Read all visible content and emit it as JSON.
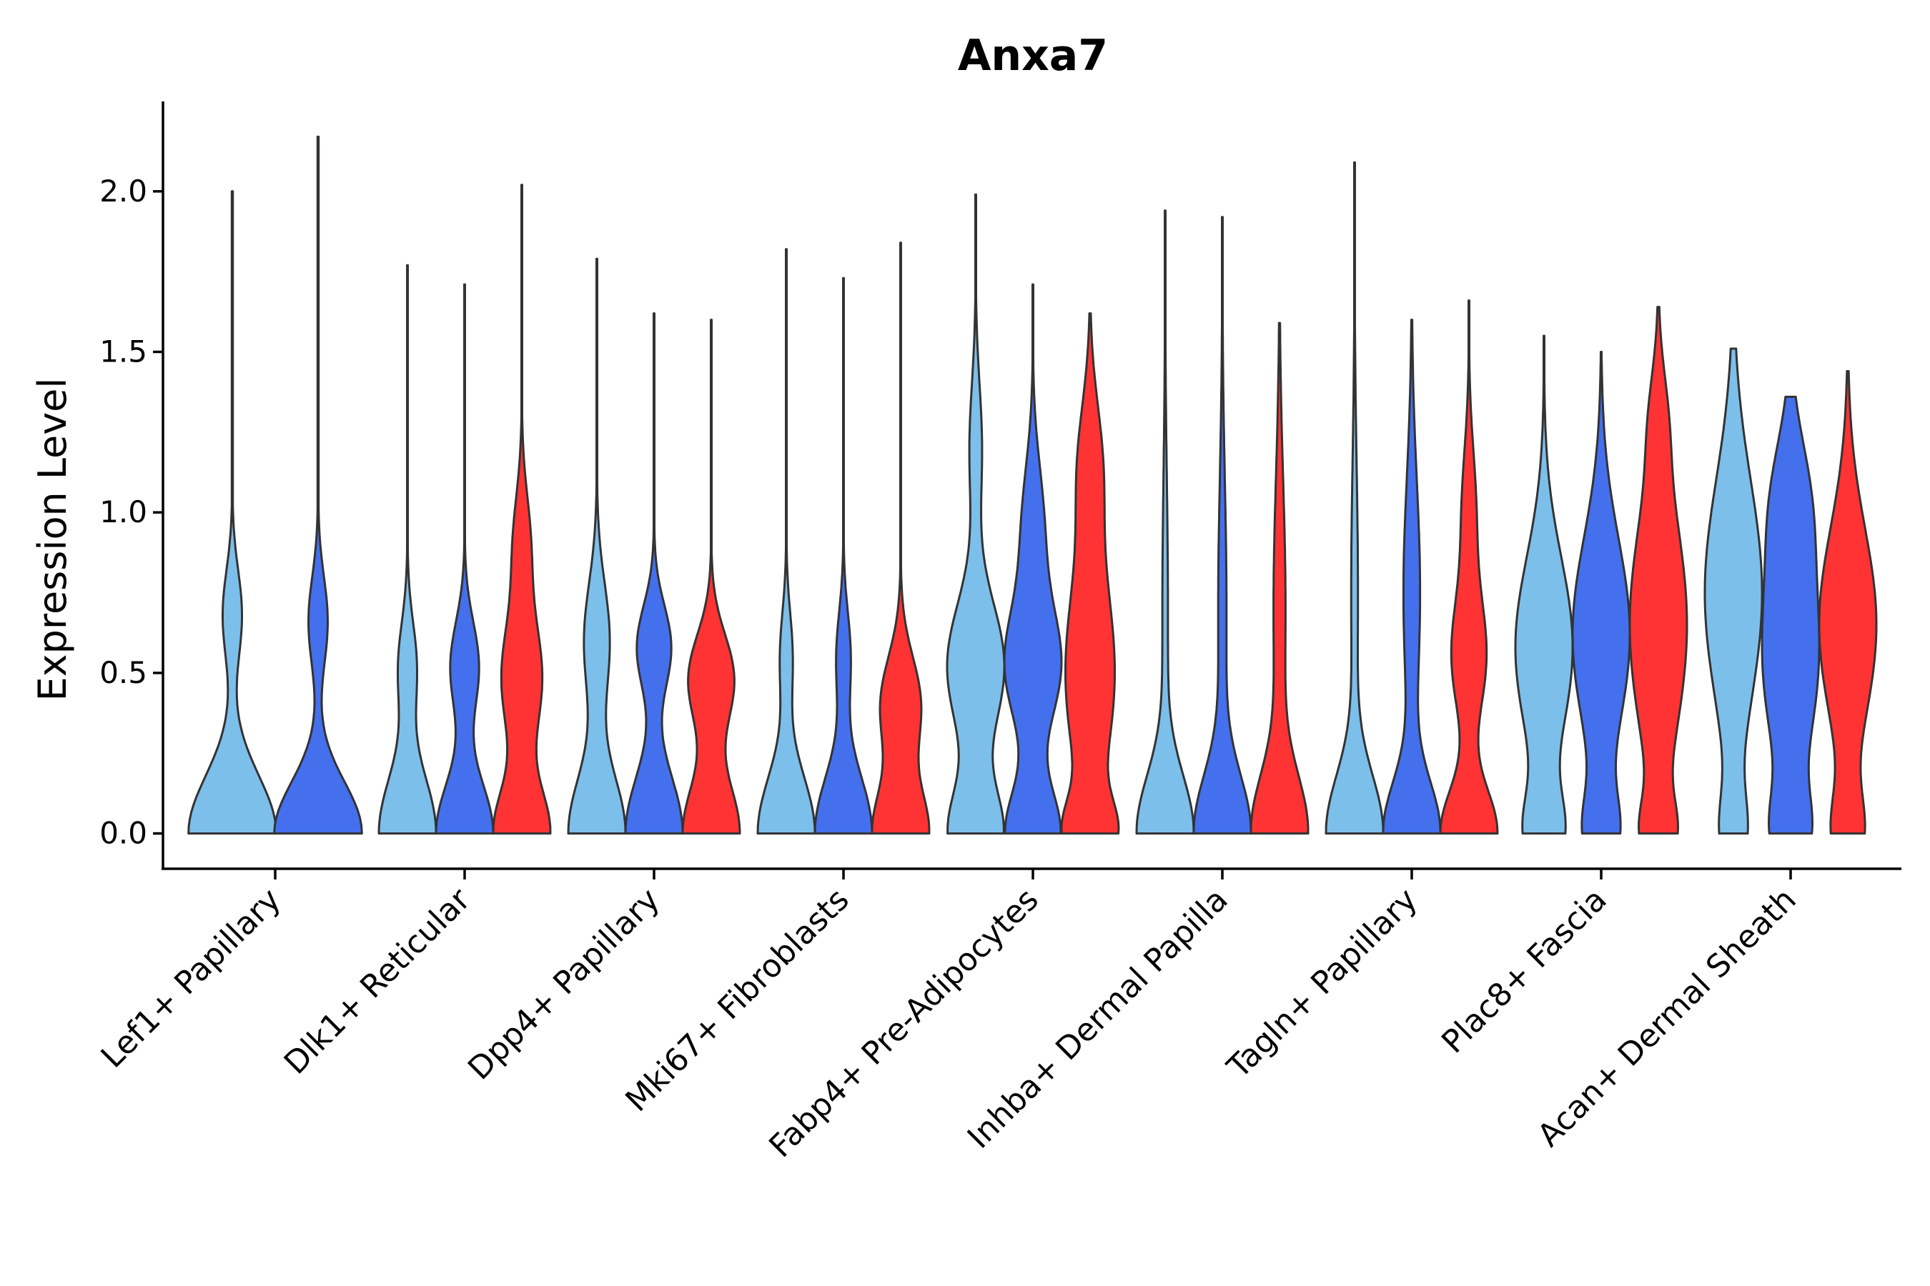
{
  "chart_data": {
    "type": "violin",
    "title": "Anxa7",
    "xlabel": "",
    "ylabel": "Expression Level",
    "ylim": [
      -0.11,
      2.28
    ],
    "yticks": [
      0.0,
      0.5,
      1.0,
      1.5,
      2.0
    ],
    "ytick_labels": [
      "0.0",
      "0.5",
      "1.0",
      "1.5",
      "2.0"
    ],
    "group_colors": [
      "#7DBFEB",
      "#4470EE",
      "#FF3333"
    ],
    "categories": [
      {
        "label": "Lef1+ Papillary",
        "violins": [
          {
            "group": 0,
            "max": 2.0,
            "width": 0.92,
            "modes": [
              [
                0.0,
                1.0,
                0.18
              ],
              [
                0.68,
                0.22,
                0.14
              ]
            ]
          },
          {
            "group": 1,
            "max": 2.17,
            "width": 0.92,
            "modes": [
              [
                0.0,
                1.0,
                0.16
              ],
              [
                0.66,
                0.22,
                0.14
              ]
            ]
          }
        ]
      },
      {
        "label": "Dlk1+ Reticular",
        "violins": [
          {
            "group": 0,
            "max": 1.77,
            "width": 0.6,
            "modes": [
              [
                0.0,
                1.0,
                0.18
              ],
              [
                0.52,
                0.32,
                0.14
              ]
            ]
          },
          {
            "group": 1,
            "max": 1.71,
            "width": 0.6,
            "modes": [
              [
                0.0,
                1.0,
                0.16
              ],
              [
                0.52,
                0.5,
                0.14
              ]
            ]
          },
          {
            "group": 2,
            "max": 2.02,
            "width": 0.6,
            "modes": [
              [
                0.0,
                1.0,
                0.14
              ],
              [
                0.48,
                0.72,
                0.18
              ],
              [
                0.9,
                0.3,
                0.16
              ]
            ]
          }
        ]
      },
      {
        "label": "Dpp4+ Papillary",
        "violins": [
          {
            "group": 0,
            "max": 1.79,
            "width": 0.6,
            "modes": [
              [
                0.0,
                1.0,
                0.18
              ],
              [
                0.6,
                0.45,
                0.18
              ]
            ]
          },
          {
            "group": 1,
            "max": 1.62,
            "width": 0.6,
            "modes": [
              [
                0.0,
                1.0,
                0.18
              ],
              [
                0.58,
                0.6,
                0.13
              ]
            ]
          },
          {
            "group": 2,
            "max": 1.6,
            "width": 0.6,
            "modes": [
              [
                0.0,
                1.0,
                0.16
              ],
              [
                0.48,
                0.8,
                0.14
              ]
            ]
          }
        ]
      },
      {
        "label": "Mki67+ Fibroblasts",
        "violins": [
          {
            "group": 0,
            "max": 1.82,
            "width": 0.6,
            "modes": [
              [
                0.0,
                1.0,
                0.18
              ],
              [
                0.55,
                0.22,
                0.14
              ]
            ]
          },
          {
            "group": 1,
            "max": 1.73,
            "width": 0.6,
            "modes": [
              [
                0.0,
                1.0,
                0.18
              ],
              [
                0.55,
                0.25,
                0.14
              ]
            ]
          },
          {
            "group": 2,
            "max": 1.84,
            "width": 0.6,
            "modes": [
              [
                0.0,
                1.0,
                0.14
              ],
              [
                0.4,
                0.72,
                0.15
              ]
            ]
          }
        ]
      },
      {
        "label": "Fabp4+ Pre-Adipocytes",
        "violins": [
          {
            "group": 0,
            "max": 1.99,
            "width": 0.6,
            "modes": [
              [
                0.0,
                0.95,
                0.14
              ],
              [
                0.52,
                1.0,
                0.2
              ],
              [
                1.2,
                0.22,
                0.2
              ]
            ]
          },
          {
            "group": 1,
            "max": 1.71,
            "width": 0.6,
            "modes": [
              [
                0.0,
                1.0,
                0.14
              ],
              [
                0.52,
                1.0,
                0.18
              ],
              [
                0.95,
                0.4,
                0.2
              ]
            ]
          },
          {
            "group": 2,
            "max": 1.62,
            "width": 0.6,
            "modes": [
              [
                0.0,
                0.9,
                0.1
              ],
              [
                0.5,
                1.0,
                0.3
              ],
              [
                1.15,
                0.45,
                0.2
              ]
            ],
            "flat_top": true
          }
        ]
      },
      {
        "label": "Inhba+ Dermal Papilla",
        "violins": [
          {
            "group": 0,
            "max": 1.94,
            "width": 0.6,
            "modes": [
              [
                0.0,
                1.0,
                0.18
              ],
              [
                0.7,
                0.1,
                0.4
              ]
            ]
          },
          {
            "group": 1,
            "max": 1.92,
            "width": 0.6,
            "modes": [
              [
                0.0,
                1.0,
                0.18
              ],
              [
                0.7,
                0.15,
                0.4
              ]
            ]
          },
          {
            "group": 2,
            "max": 1.59,
            "width": 0.6,
            "modes": [
              [
                0.0,
                1.0,
                0.18
              ],
              [
                0.7,
                0.22,
                0.4
              ]
            ]
          }
        ]
      },
      {
        "label": "Tagln+ Papillary",
        "violins": [
          {
            "group": 0,
            "max": 2.09,
            "width": 0.6,
            "modes": [
              [
                0.0,
                1.0,
                0.18
              ],
              [
                0.75,
                0.12,
                0.4
              ]
            ]
          },
          {
            "group": 1,
            "max": 1.6,
            "width": 0.6,
            "modes": [
              [
                0.0,
                1.0,
                0.16
              ],
              [
                0.75,
                0.3,
                0.35
              ]
            ]
          },
          {
            "group": 2,
            "max": 1.66,
            "width": 0.6,
            "modes": [
              [
                0.0,
                1.0,
                0.14
              ],
              [
                0.55,
                0.6,
                0.18
              ],
              [
                1.0,
                0.25,
                0.2
              ]
            ]
          }
        ]
      },
      {
        "label": "Plac8+ Fascia",
        "violins": [
          {
            "group": 0,
            "max": 1.55,
            "width": 0.6,
            "modes": [
              [
                0.0,
                0.6,
                0.12
              ],
              [
                0.58,
                0.95,
                0.28
              ]
            ],
            "flat_top": true
          },
          {
            "group": 1,
            "max": 1.5,
            "width": 0.6,
            "modes": [
              [
                0.0,
                0.55,
                0.12
              ],
              [
                0.62,
                1.0,
                0.3
              ]
            ],
            "flat_top": true
          },
          {
            "group": 2,
            "max": 1.64,
            "width": 0.6,
            "modes": [
              [
                0.0,
                0.5,
                0.1
              ],
              [
                0.65,
                1.0,
                0.35
              ],
              [
                1.3,
                0.2,
                0.15
              ]
            ]
          }
        ]
      },
      {
        "label": "Acan+ Dermal Sheath",
        "violins": [
          {
            "group": 0,
            "max": 1.51,
            "width": 0.6,
            "modes": [
              [
                0.0,
                0.4,
                0.12
              ],
              [
                0.75,
                1.0,
                0.35
              ]
            ],
            "flat_top": true
          },
          {
            "group": 1,
            "max": 1.36,
            "width": 0.6,
            "modes": [
              [
                0.0,
                0.55,
                0.12
              ],
              [
                0.55,
                0.95,
                0.3
              ],
              [
                1.05,
                0.5,
                0.2
              ]
            ],
            "flat_top": true
          },
          {
            "group": 2,
            "max": 1.44,
            "width": 0.6,
            "modes": [
              [
                0.0,
                0.5,
                0.12
              ],
              [
                0.65,
                1.0,
                0.3
              ]
            ],
            "flat_top": true
          }
        ]
      }
    ]
  }
}
